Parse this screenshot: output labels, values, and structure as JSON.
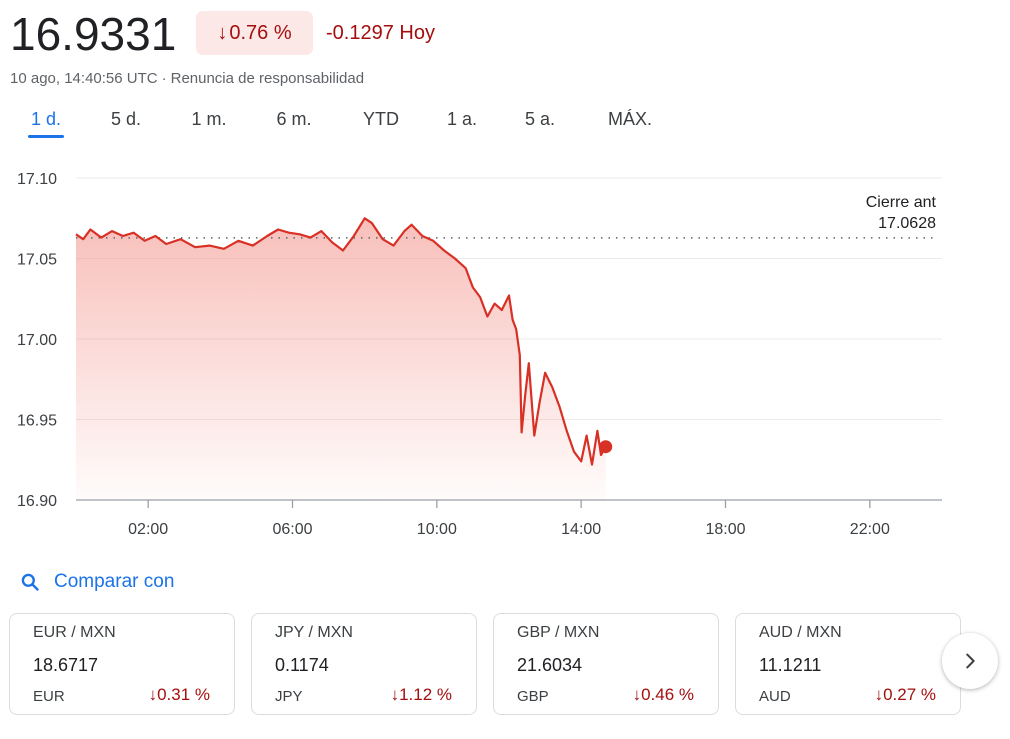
{
  "quote": {
    "price": "16.9331",
    "percent_change": "0.76 %",
    "abs_change": "-0.1297",
    "period": "Hoy",
    "timestamp": "10 ago, 14:40:56 UTC",
    "separator": "·",
    "disclaimer": "Renuncia de responsabilidad",
    "arrow": "↓"
  },
  "ranges": [
    {
      "label": "1 d.",
      "active": true
    },
    {
      "label": "5 d.",
      "active": false
    },
    {
      "label": "1 m.",
      "active": false
    },
    {
      "label": "6 m.",
      "active": false
    },
    {
      "label": "YTD",
      "active": false
    },
    {
      "label": "1 a.",
      "active": false
    },
    {
      "label": "5 a.",
      "active": false
    },
    {
      "label": "MÁX.",
      "active": false
    }
  ],
  "chart_data": {
    "type": "line",
    "xlabel": "",
    "ylabel": "",
    "xlim": [
      0,
      24
    ],
    "ylim": [
      16.9,
      17.1
    ],
    "yticks": [
      "17.10",
      "17.05",
      "17.00",
      "16.95",
      "16.90"
    ],
    "ytick_values": [
      17.1,
      17.05,
      17.0,
      16.95,
      16.9
    ],
    "xticks": [
      "02:00",
      "06:00",
      "10:00",
      "14:00",
      "18:00",
      "22:00"
    ],
    "xtick_values": [
      2,
      6,
      10,
      14,
      18,
      22
    ],
    "grid": true,
    "line_color": "#d93025",
    "fill_color": "#f28b82",
    "previous_close": {
      "label": "Cierre ant",
      "value_text": "17.0628",
      "value": 17.0628
    },
    "series": [
      {
        "x": [
          0.0,
          0.2,
          0.4,
          0.7,
          1.0,
          1.3,
          1.6,
          1.9,
          2.2,
          2.5,
          2.9,
          3.3,
          3.7,
          4.1,
          4.5,
          4.9,
          5.3,
          5.6,
          5.9,
          6.2,
          6.5,
          6.8,
          7.1,
          7.4,
          7.7,
          8.0,
          8.2,
          8.5,
          8.8,
          9.1,
          9.3,
          9.6,
          9.9,
          10.2,
          10.5,
          10.8,
          11.0,
          11.2,
          11.4,
          11.6,
          11.8,
          12.0,
          12.1,
          12.2,
          12.3,
          12.35,
          12.45,
          12.55,
          12.7,
          12.85,
          13.0,
          13.2,
          13.4,
          13.6,
          13.8,
          14.0,
          14.15,
          14.3,
          14.45,
          14.55,
          14.68
        ],
        "y": [
          17.065,
          17.062,
          17.068,
          17.063,
          17.067,
          17.064,
          17.066,
          17.061,
          17.064,
          17.059,
          17.062,
          17.057,
          17.058,
          17.056,
          17.061,
          17.058,
          17.064,
          17.068,
          17.066,
          17.065,
          17.063,
          17.067,
          17.06,
          17.055,
          17.064,
          17.075,
          17.072,
          17.062,
          17.058,
          17.067,
          17.071,
          17.064,
          17.061,
          17.055,
          17.05,
          17.044,
          17.032,
          17.026,
          17.014,
          17.022,
          17.018,
          17.027,
          17.012,
          17.006,
          16.99,
          16.942,
          16.965,
          16.985,
          16.94,
          16.961,
          16.979,
          16.97,
          16.958,
          16.943,
          16.93,
          16.924,
          16.94,
          16.922,
          16.943,
          16.928,
          16.9331
        ]
      }
    ]
  },
  "compare": {
    "label": "Comparar con",
    "icon": "search-icon"
  },
  "cards": [
    {
      "pair": "EUR / MXN",
      "value": "18.6717",
      "currency": "EUR",
      "change": "0.31 %"
    },
    {
      "pair": "JPY / MXN",
      "value": "0.1174",
      "currency": "JPY",
      "change": "1.12 %"
    },
    {
      "pair": "GBP / MXN",
      "value": "21.6034",
      "currency": "GBP",
      "change": "0.46 %"
    },
    {
      "pair": "AUD / MXN",
      "value": "11.1211",
      "currency": "AUD",
      "change": "0.27 %"
    }
  ],
  "next_icon": "chevron-right-icon"
}
